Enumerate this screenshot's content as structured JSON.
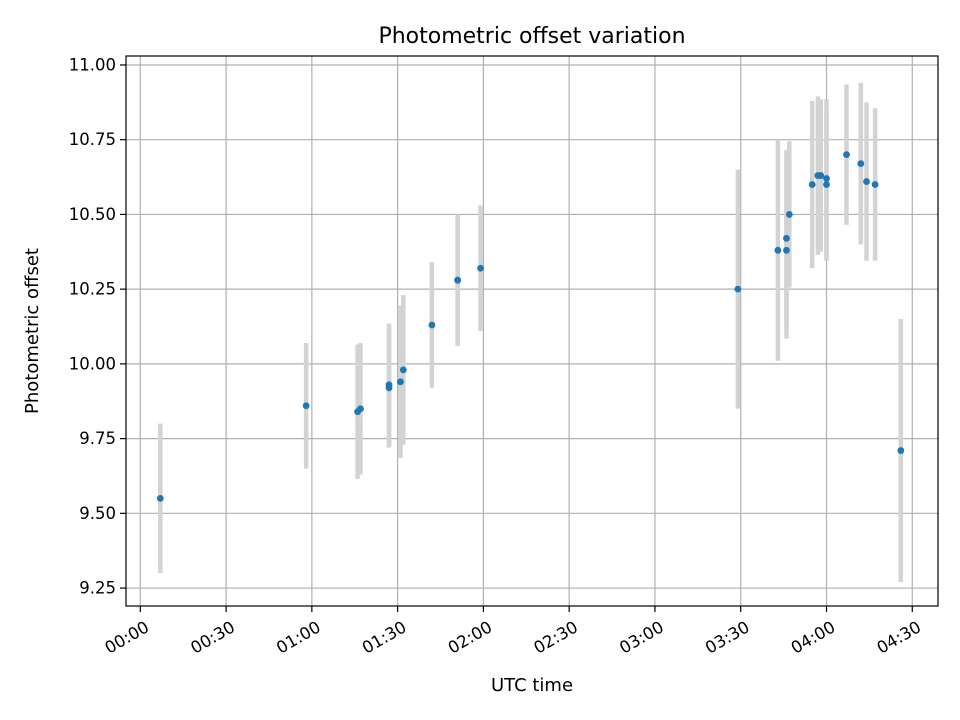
{
  "chart_data": {
    "type": "scatter",
    "title": "Photometric offset variation",
    "xlabel": "UTC time",
    "ylabel": "Photometric offset",
    "x_ticks": [
      "00:00",
      "00:30",
      "01:00",
      "01:30",
      "02:00",
      "02:30",
      "03:00",
      "03:30",
      "04:00",
      "04:30"
    ],
    "y_ticks": [
      "9.25",
      "9.50",
      "9.75",
      "10.00",
      "10.25",
      "10.50",
      "10.75",
      "11.00"
    ],
    "xlim": [
      "-00:05",
      "04:39"
    ],
    "ylim": [
      9.19,
      11.03
    ],
    "grid": true,
    "colors": {
      "point": "#1f77b4",
      "errorbar": "#d3d3d3"
    },
    "points": [
      {
        "time": "00:07",
        "y": 9.55,
        "err": 0.25
      },
      {
        "time": "00:58",
        "y": 9.86,
        "err": 0.21
      },
      {
        "time": "01:16",
        "y": 9.84,
        "err": 0.225
      },
      {
        "time": "01:17",
        "y": 9.85,
        "err": 0.22
      },
      {
        "time": "01:27",
        "y": 9.93,
        "err": 0.205
      },
      {
        "time": "01:27",
        "y": 9.92,
        "err": 0.2
      },
      {
        "time": "01:31",
        "y": 9.94,
        "err": 0.255
      },
      {
        "time": "01:32",
        "y": 9.98,
        "err": 0.25
      },
      {
        "time": "01:42",
        "y": 10.13,
        "err": 0.21
      },
      {
        "time": "01:51",
        "y": 10.28,
        "err": 0.215
      },
      {
        "time": "01:51",
        "y": 10.28,
        "err": 0.22
      },
      {
        "time": "01:59",
        "y": 10.32,
        "err": 0.21
      },
      {
        "time": "03:29",
        "y": 10.25,
        "err": 0.4
      },
      {
        "time": "03:43",
        "y": 10.38,
        "err": 0.37
      },
      {
        "time": "03:46",
        "y": 10.38,
        "err": 0.295
      },
      {
        "time": "03:46",
        "y": 10.42,
        "err": 0.295
      },
      {
        "time": "03:47",
        "y": 10.5,
        "err": 0.245
      },
      {
        "time": "03:55",
        "y": 10.6,
        "err": 0.28
      },
      {
        "time": "03:57",
        "y": 10.63,
        "err": 0.265
      },
      {
        "time": "03:58",
        "y": 10.63,
        "err": 0.255
      },
      {
        "time": "04:00",
        "y": 10.62,
        "err": 0.265
      },
      {
        "time": "04:00",
        "y": 10.6,
        "err": 0.255
      },
      {
        "time": "04:07",
        "y": 10.7,
        "err": 0.235
      },
      {
        "time": "04:12",
        "y": 10.67,
        "err": 0.27
      },
      {
        "time": "04:14",
        "y": 10.61,
        "err": 0.265
      },
      {
        "time": "04:17",
        "y": 10.6,
        "err": 0.255
      },
      {
        "time": "04:26",
        "y": 9.71,
        "err": 0.44
      }
    ]
  }
}
